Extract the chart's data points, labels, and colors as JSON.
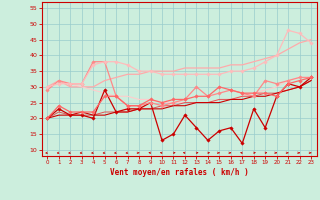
{
  "xlabel": "Vent moyen/en rafales ( km/h )",
  "xlim": [
    -0.5,
    23.5
  ],
  "ylim": [
    8,
    57
  ],
  "yticks": [
    10,
    15,
    20,
    25,
    30,
    35,
    40,
    45,
    50,
    55
  ],
  "xticks": [
    0,
    1,
    2,
    3,
    4,
    5,
    6,
    7,
    8,
    9,
    10,
    11,
    12,
    13,
    14,
    15,
    16,
    17,
    18,
    19,
    20,
    21,
    22,
    23
  ],
  "bg_color": "#cceedd",
  "grid_color": "#99cccc",
  "series": [
    {
      "y": [
        20,
        23,
        21,
        21,
        20,
        29,
        22,
        23,
        23,
        25,
        13,
        15,
        21,
        17,
        13,
        16,
        17,
        12,
        23,
        17,
        27,
        31,
        30,
        33
      ],
      "color": "#cc0000",
      "lw": 0.9,
      "marker": "D",
      "ms": 1.8,
      "zorder": 5
    },
    {
      "y": [
        20,
        21,
        21,
        22,
        21,
        21,
        22,
        22,
        23,
        23,
        23,
        24,
        24,
        25,
        25,
        25,
        26,
        26,
        27,
        27,
        28,
        29,
        30,
        32
      ],
      "color": "#cc0000",
      "lw": 0.8,
      "marker": null,
      "ms": 0,
      "zorder": 4
    },
    {
      "y": [
        20,
        22,
        21,
        21,
        21,
        22,
        22,
        22,
        23,
        23,
        24,
        24,
        25,
        25,
        25,
        26,
        26,
        27,
        27,
        28,
        28,
        29,
        30,
        32
      ],
      "color": "#dd5555",
      "lw": 0.7,
      "marker": null,
      "ms": 0,
      "zorder": 3
    },
    {
      "y": [
        29,
        32,
        31,
        31,
        38,
        38,
        27,
        24,
        24,
        25,
        24,
        25,
        26,
        30,
        27,
        28,
        29,
        28,
        27,
        32,
        31,
        32,
        33,
        33
      ],
      "color": "#ff8888",
      "lw": 0.9,
      "marker": "D",
      "ms": 1.8,
      "zorder": 5
    },
    {
      "y": [
        30,
        32,
        30,
        30,
        30,
        32,
        33,
        34,
        34,
        35,
        35,
        35,
        36,
        36,
        36,
        36,
        37,
        37,
        38,
        39,
        40,
        42,
        44,
        45
      ],
      "color": "#ffaaaa",
      "lw": 0.9,
      "marker": null,
      "ms": 0,
      "zorder": 2
    },
    {
      "y": [
        30,
        31,
        31,
        31,
        37,
        38,
        38,
        37,
        35,
        35,
        34,
        34,
        34,
        34,
        34,
        34,
        35,
        35,
        36,
        38,
        40,
        48,
        47,
        44
      ],
      "color": "#ffbbbb",
      "lw": 0.9,
      "marker": "D",
      "ms": 1.8,
      "zorder": 5
    },
    {
      "y": [
        20,
        24,
        22,
        22,
        22,
        27,
        27,
        24,
        24,
        26,
        25,
        26,
        26,
        27,
        27,
        30,
        29,
        28,
        28,
        28,
        27,
        31,
        32,
        33
      ],
      "color": "#ff6666",
      "lw": 0.9,
      "marker": "D",
      "ms": 1.8,
      "zorder": 5
    },
    {
      "y": [
        29,
        32,
        31,
        30,
        29,
        28,
        27,
        27,
        26,
        26,
        25,
        25,
        25,
        25,
        25,
        26,
        26,
        27,
        28,
        29,
        30,
        32,
        33,
        33
      ],
      "color": "#ffcccc",
      "lw": 0.8,
      "marker": null,
      "ms": 0,
      "zorder": 2
    }
  ],
  "arrows": {
    "y": 9.0,
    "directions": [
      225,
      225,
      225,
      225,
      225,
      225,
      225,
      225,
      90,
      315,
      315,
      45,
      315,
      45,
      45,
      90,
      90,
      315,
      45,
      45,
      90,
      90,
      90,
      90
    ],
    "color": "#cc0000"
  }
}
